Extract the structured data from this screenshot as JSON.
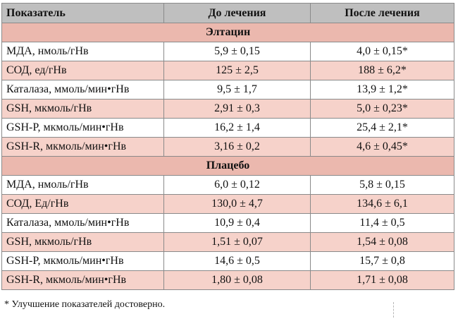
{
  "table": {
    "headers": [
      "Показатель",
      "До лечения",
      "После лечения"
    ],
    "groups": [
      {
        "title": "Элтацин",
        "rows": [
          [
            "МДА, нмоль/гНв",
            "5,9 ± 0,15",
            "4,0 ± 0,15*"
          ],
          [
            "СОД, ед/гНв",
            "125 ± 2,5",
            "188 ± 6,2*"
          ],
          [
            "Каталаза, ммоль/мин•гНв",
            "9,5 ± 1,7",
            "13,9 ± 1,2*"
          ],
          [
            "GSH, мкмоль/гНв",
            "2,91 ± 0,3",
            "5,0 ± 0,23*"
          ],
          [
            "GSH-P, мкмоль/мин•гНв",
            "16,2 ± 1,4",
            "25,4 ± 2,1*"
          ],
          [
            "GSH-R, мкмоль/мин•гНв",
            "3,16 ± 0,2",
            "4,6 ± 0,45*"
          ]
        ]
      },
      {
        "title": "Плацебо",
        "rows": [
          [
            "МДА, нмоль/гНв",
            "6,0 ± 0,12",
            "5,8 ± 0,15"
          ],
          [
            "СОД, Ед/гНв",
            "130,0 ± 4,7",
            "134,6 ± 6,1"
          ],
          [
            "Каталаза, ммоль/мин•гНв",
            "10,9 ± 0,4",
            "11,4 ± 0,5"
          ],
          [
            "GSH, мкмоль/гНв",
            "1,51 ± 0,07",
            "1,54 ± 0,08"
          ],
          [
            "GSH-P, мкмоль/мин•гНв",
            "14,6 ± 0,5",
            "15,7 ± 0,8"
          ],
          [
            "GSH-R, мкмоль/мин•гНв",
            "1,80 ± 0,08",
            "1,71 ± 0,08"
          ]
        ]
      }
    ]
  },
  "footnote": "* Улучшение показателей достоверно.",
  "colors": {
    "header_bg": "#bfbfbf",
    "group_bg": "#ebb8ae",
    "row_alt_bg": "#f6d2ca",
    "border": "#8a8a8a"
  }
}
